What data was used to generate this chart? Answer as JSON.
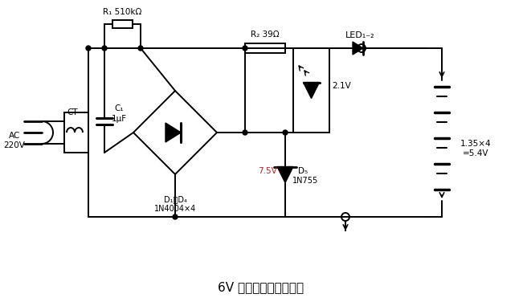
{
  "title": "6V 镍镉电池充电器电路",
  "title_fontsize": 11,
  "background_color": "#ffffff",
  "line_color": "#000000",
  "red_color": "#b22222",
  "fig_width": 6.51,
  "fig_height": 3.76,
  "dpi": 100,
  "labels": {
    "AC_220V": "AC\n220V",
    "CT": "CT",
    "R1": "R₁ 510kΩ",
    "C1_name": "C₁",
    "C1_val": "1μF",
    "R2": "R₂ 39Ω",
    "LED": "LED₁₋₂",
    "D1D4": "D₁～D₄",
    "D1D4_val": "1N4004×4",
    "D5": "D₅",
    "D5_val": "1N755",
    "zener_v": "7.5V",
    "v21": "2.1V",
    "battery": "1.35×4\n=5.4V"
  }
}
